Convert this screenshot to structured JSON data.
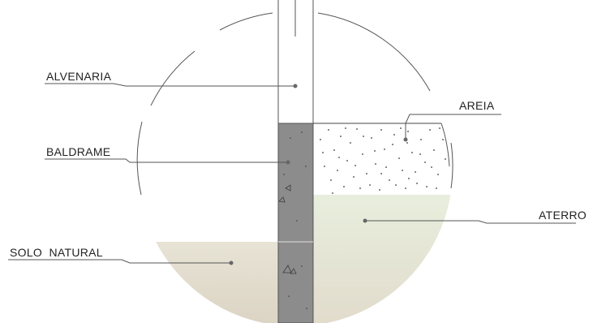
{
  "labels": {
    "alvenaria": "ALVENARIA",
    "baldrame": "BALDRAME",
    "solo_natural": "SOLO  NATURAL",
    "areia": "AREIA",
    "aterro": "ATERRO"
  },
  "colors": {
    "baldrame_fill": "#8c8c8c",
    "areia_dots": "#3a3a3a",
    "aterro_top": "#e8eedd",
    "aterro_bottom": "#e2dccf",
    "solo_top": "#e6e2d3",
    "solo_bottom": "#ddd5c5",
    "line": "#555555"
  }
}
